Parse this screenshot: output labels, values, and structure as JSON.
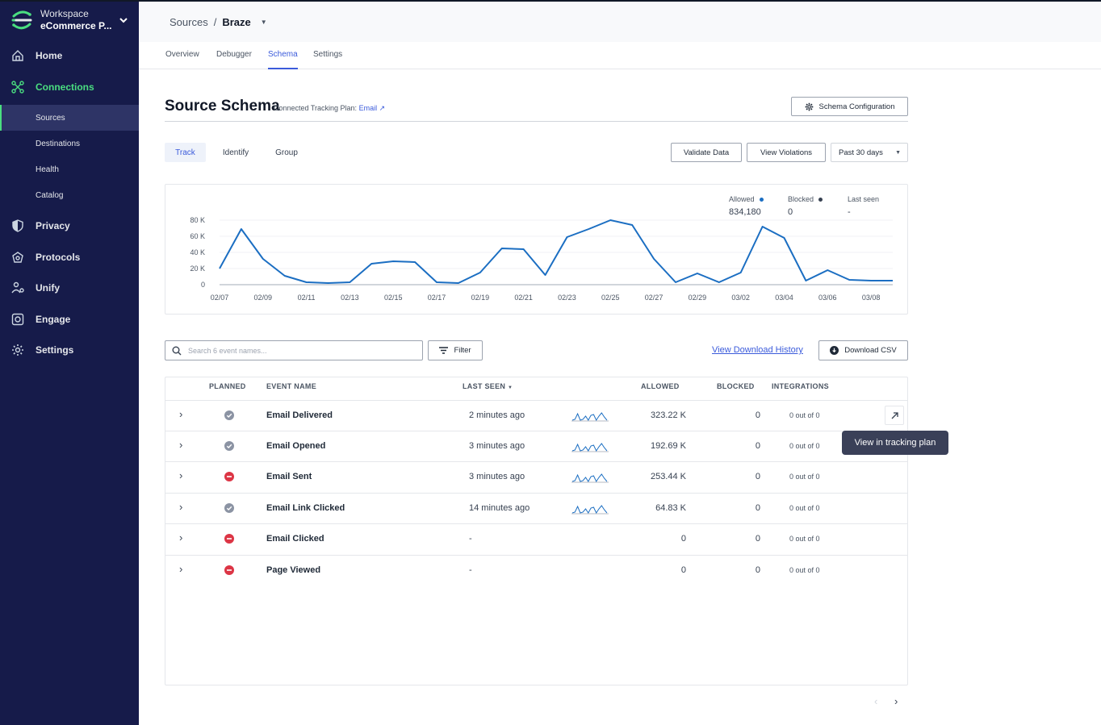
{
  "workspace": {
    "label": "Workspace",
    "name": "eCommerce P..."
  },
  "nav": {
    "home": "Home",
    "connections": "Connections",
    "sub": [
      "Sources",
      "Destinations",
      "Health",
      "Catalog"
    ],
    "privacy": "Privacy",
    "protocols": "Protocols",
    "unify": "Unify",
    "engage": "Engage",
    "settings": "Settings"
  },
  "breadcrumb": {
    "root": "Sources",
    "sep": "/",
    "current": "Braze"
  },
  "tabs": [
    "Overview",
    "Debugger",
    "Schema",
    "Settings"
  ],
  "page": {
    "title": "Source Schema",
    "subtitle": "Connected Tracking Plan: ",
    "plan_link": "Email",
    "config_button": "Schema Configuration"
  },
  "segments": [
    "Track",
    "Identify",
    "Group"
  ],
  "actions": {
    "validate": "Validate Data",
    "violations": "View Violations",
    "range": "Past 30 days"
  },
  "legend": {
    "allowed_label": "Allowed",
    "allowed_value": "834,180",
    "blocked_label": "Blocked",
    "blocked_value": "0",
    "last_seen_label": "Last seen",
    "last_seen_value": "-"
  },
  "colors": {
    "accent": "#3b5bdb",
    "line": "#1b6ec2",
    "sidebar": "#161b4a",
    "active_nav": "#4ade80",
    "blocked": "#dc3545"
  },
  "chart_data": {
    "type": "line",
    "x": [
      "02/07",
      "02/08",
      "02/09",
      "02/10",
      "02/11",
      "02/12",
      "02/13",
      "02/14",
      "02/15",
      "02/16",
      "02/17",
      "02/18",
      "02/19",
      "02/20",
      "02/21",
      "02/22",
      "02/23",
      "02/24",
      "02/25",
      "02/26",
      "02/27",
      "02/28",
      "02/29",
      "03/01",
      "03/02",
      "03/03",
      "03/04",
      "03/05",
      "03/06",
      "03/07",
      "03/08",
      "03/09"
    ],
    "tick_labels": [
      "02/07",
      "02/09",
      "02/11",
      "02/13",
      "02/15",
      "02/17",
      "02/19",
      "02/21",
      "02/23",
      "02/25",
      "02/27",
      "02/29",
      "03/02",
      "03/04",
      "03/06",
      "03/08"
    ],
    "series": [
      {
        "values": [
          20000,
          69000,
          32000,
          11000,
          3000,
          2000,
          3000,
          26000,
          29000,
          28000,
          3000,
          2000,
          15000,
          45000,
          44000,
          12000,
          59000,
          69000,
          80000,
          74000,
          32000,
          3000,
          14000,
          3000,
          15000,
          72000,
          58000,
          5000,
          18000,
          6000,
          5000,
          5000
        ]
      }
    ],
    "y_ticks": [
      "0",
      "20 K",
      "40 K",
      "60 K",
      "80 K"
    ],
    "ylim": [
      0,
      85000
    ],
    "grid": true
  },
  "toolbar": {
    "search_placeholder": "Search 6 event names...",
    "filter": "Filter",
    "download_history": "View Download History",
    "download_csv": "Download CSV"
  },
  "table": {
    "headers": {
      "planned": "PLANNED",
      "event": "EVENT NAME",
      "last_seen": "LAST SEEN",
      "allowed": "ALLOWED",
      "blocked": "BLOCKED",
      "integrations": "INTEGRATIONS"
    },
    "rows": [
      {
        "planned": "allowed",
        "event": "Email Delivered",
        "last_seen": "2 minutes ago",
        "spark": true,
        "allowed": "323.22 K",
        "blocked": "0",
        "integrations": "0 out of 0"
      },
      {
        "planned": "allowed",
        "event": "Email Opened",
        "last_seen": "3 minutes ago",
        "spark": true,
        "allowed": "192.69 K",
        "blocked": "0",
        "integrations": "0 out of 0"
      },
      {
        "planned": "blocked",
        "event": "Email Sent",
        "last_seen": "3 minutes ago",
        "spark": true,
        "allowed": "253.44 K",
        "blocked": "0",
        "integrations": "0 out of 0"
      },
      {
        "planned": "allowed",
        "event": "Email Link Clicked",
        "last_seen": "14 minutes ago",
        "spark": true,
        "allowed": "64.83 K",
        "blocked": "0",
        "integrations": "0 out of 0"
      },
      {
        "planned": "blocked",
        "event": "Email Clicked",
        "last_seen": "-",
        "spark": false,
        "allowed": "0",
        "blocked": "0",
        "integrations": "0 out of 0"
      },
      {
        "planned": "blocked",
        "event": "Page Viewed",
        "last_seen": "-",
        "spark": false,
        "allowed": "0",
        "blocked": "0",
        "integrations": "0 out of 0"
      }
    ]
  },
  "tooltip": "View in tracking plan"
}
